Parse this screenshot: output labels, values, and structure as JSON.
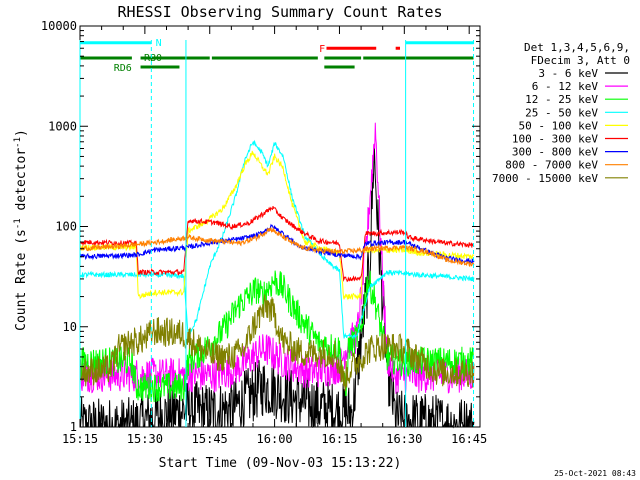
{
  "chart_data": {
    "type": "line",
    "title": "RHESSI Observing Summary Count Rates",
    "xlabel": "Start Time (09-Nov-03 15:13:22)",
    "ylabel": "Count Rate (s⁻¹ detector⁻¹)",
    "ylabel_main": "Count Rate (s",
    "ylabel_sup1": "-1",
    "ylabel_mid": " detector",
    "ylabel_sup2": "-1",
    "ylabel_end": ")",
    "yscale": "log",
    "xlim_minutes": [
      15.0,
      107.5
    ],
    "ylim": [
      1,
      10000
    ],
    "grid": false,
    "legend_position": "right",
    "timestamp": "25-Oct-2021 08:43",
    "x_ticks": [
      {
        "minute": 15,
        "label": "15:15"
      },
      {
        "minute": 30,
        "label": "15:30"
      },
      {
        "minute": 45,
        "label": "15:45"
      },
      {
        "minute": 60,
        "label": "16:00"
      },
      {
        "minute": 75,
        "label": "16:15"
      },
      {
        "minute": 90,
        "label": "16:30"
      },
      {
        "minute": 105,
        "label": "16:45"
      }
    ],
    "y_ticks": [
      {
        "value": 1,
        "label": "1"
      },
      {
        "value": 10,
        "label": "10"
      },
      {
        "value": 100,
        "label": "100"
      },
      {
        "value": 1000,
        "label": "1000"
      },
      {
        "value": 10000,
        "label": "10000"
      }
    ],
    "legend_header": [
      "Det 1,3,4,5,6,9,",
      "FDecim 3, Att 0"
    ],
    "series": [
      {
        "name": "3 - 6 keV",
        "color": "#000000",
        "noise": 0.6,
        "points": [
          [
            15,
            1
          ],
          [
            15.5,
            1
          ],
          [
            27,
            1
          ],
          [
            31,
            1.2
          ],
          [
            40,
            1.5
          ],
          [
            44,
            1.4
          ],
          [
            50,
            1.5
          ],
          [
            54,
            2
          ],
          [
            57,
            2.5
          ],
          [
            60,
            2.4
          ],
          [
            63,
            2
          ],
          [
            70,
            1.6
          ],
          [
            75,
            1.4
          ],
          [
            78,
            1.4
          ],
          [
            82,
            40
          ],
          [
            83,
            600
          ],
          [
            84,
            80
          ],
          [
            86,
            4
          ],
          [
            88,
            1.2
          ],
          [
            106,
            1
          ]
        ]
      },
      {
        "name": "6 - 12 keV",
        "color": "#ff00ff",
        "noise": 0.35,
        "points": [
          [
            15,
            3.3
          ],
          [
            27,
            3.3
          ],
          [
            28,
            3.3
          ],
          [
            31,
            3.3
          ],
          [
            40,
            3.3
          ],
          [
            47,
            3.3
          ],
          [
            52,
            4
          ],
          [
            56,
            5.5
          ],
          [
            58,
            6
          ],
          [
            62,
            4.5
          ],
          [
            68,
            3.5
          ],
          [
            75,
            4
          ],
          [
            77,
            7
          ],
          [
            79,
            8
          ],
          [
            81,
            50
          ],
          [
            82.5,
            350
          ],
          [
            83.3,
            1000
          ],
          [
            84.5,
            80
          ],
          [
            86,
            5
          ],
          [
            88,
            3.2
          ],
          [
            106,
            3.3
          ]
        ]
      },
      {
        "name": "12 - 25 keV",
        "color": "#00ff00",
        "noise": 0.3,
        "points": [
          [
            15,
            4.5
          ],
          [
            27,
            4.5
          ],
          [
            28,
            2.5
          ],
          [
            31,
            2.5
          ],
          [
            39,
            2.5
          ],
          [
            40,
            4.5
          ],
          [
            44,
            6
          ],
          [
            48,
            9
          ],
          [
            52,
            17
          ],
          [
            55,
            22
          ],
          [
            56,
            24
          ],
          [
            57,
            20
          ],
          [
            58,
            23
          ],
          [
            60,
            29
          ],
          [
            62,
            24
          ],
          [
            65,
            14
          ],
          [
            70,
            7
          ],
          [
            75,
            6
          ],
          [
            76.5,
            2
          ],
          [
            77,
            6
          ],
          [
            80,
            9
          ],
          [
            81.5,
            30
          ],
          [
            83,
            20
          ],
          [
            86,
            5
          ],
          [
            89,
            4.5
          ],
          [
            106,
            4.5
          ]
        ]
      },
      {
        "name": "25 - 50 keV",
        "color": "#00ffff",
        "noise": 0.05,
        "points": [
          [
            15,
            33
          ],
          [
            28,
            33
          ],
          [
            32,
            33
          ],
          [
            39,
            32
          ],
          [
            40,
            8
          ],
          [
            42,
            12
          ],
          [
            45,
            40
          ],
          [
            48,
            80
          ],
          [
            51,
            200
          ],
          [
            53,
            450
          ],
          [
            55,
            700
          ],
          [
            57,
            550
          ],
          [
            58.5,
            400
          ],
          [
            60,
            680
          ],
          [
            62,
            500
          ],
          [
            64,
            200
          ],
          [
            67,
            80
          ],
          [
            72,
            45
          ],
          [
            75,
            36
          ],
          [
            76,
            8
          ],
          [
            79,
            8
          ],
          [
            82,
            25
          ],
          [
            86,
            35
          ],
          [
            106,
            30
          ]
        ]
      },
      {
        "name": "50 - 100 keV",
        "color": "#ffff00",
        "noise": 0.06,
        "points": [
          [
            15,
            62
          ],
          [
            28,
            62
          ],
          [
            28.5,
            20
          ],
          [
            32,
            22
          ],
          [
            39,
            22
          ],
          [
            40,
            90
          ],
          [
            44,
            110
          ],
          [
            48,
            150
          ],
          [
            51,
            250
          ],
          [
            53,
            400
          ],
          [
            55,
            550
          ],
          [
            57,
            400
          ],
          [
            58.5,
            330
          ],
          [
            60,
            500
          ],
          [
            62,
            380
          ],
          [
            64,
            170
          ],
          [
            67,
            70
          ],
          [
            72,
            58
          ],
          [
            75,
            54
          ],
          [
            76,
            20
          ],
          [
            80,
            20
          ],
          [
            80.5,
            58
          ],
          [
            90,
            58
          ],
          [
            93,
            55
          ],
          [
            100,
            52
          ],
          [
            106,
            50
          ]
        ]
      },
      {
        "name": "100 - 300 keV",
        "color": "#ff0000",
        "noise": 0.05,
        "points": [
          [
            15,
            70
          ],
          [
            28,
            68
          ],
          [
            28.5,
            35
          ],
          [
            32,
            35
          ],
          [
            39,
            35
          ],
          [
            40,
            115
          ],
          [
            46,
            110
          ],
          [
            50,
            100
          ],
          [
            54,
            108
          ],
          [
            58,
            140
          ],
          [
            59.5,
            155
          ],
          [
            62,
            120
          ],
          [
            66,
            90
          ],
          [
            70,
            72
          ],
          [
            75,
            68
          ],
          [
            76,
            30
          ],
          [
            80,
            30
          ],
          [
            81,
            85
          ],
          [
            90,
            88
          ],
          [
            91,
            78
          ],
          [
            96,
            72
          ],
          [
            100,
            68
          ],
          [
            106,
            65
          ]
        ]
      },
      {
        "name": "300 - 800 keV",
        "color": "#0000ff",
        "noise": 0.05,
        "points": [
          [
            15,
            50
          ],
          [
            28,
            52
          ],
          [
            32,
            58
          ],
          [
            40,
            62
          ],
          [
            46,
            70
          ],
          [
            52,
            75
          ],
          [
            56,
            82
          ],
          [
            59.5,
            100
          ],
          [
            62,
            85
          ],
          [
            66,
            62
          ],
          [
            72,
            55
          ],
          [
            75,
            52
          ],
          [
            80,
            50
          ],
          [
            81,
            68
          ],
          [
            90,
            70
          ],
          [
            96,
            55
          ],
          [
            100,
            48
          ],
          [
            106,
            45
          ]
        ]
      },
      {
        "name": "800 - 7000 keV",
        "color": "#ff8000",
        "noise": 0.05,
        "points": [
          [
            15,
            60
          ],
          [
            25,
            64
          ],
          [
            33,
            70
          ],
          [
            40,
            78
          ],
          [
            46,
            72
          ],
          [
            52,
            68
          ],
          [
            56,
            78
          ],
          [
            59,
            95
          ],
          [
            62,
            78
          ],
          [
            66,
            62
          ],
          [
            70,
            58
          ],
          [
            75,
            56
          ],
          [
            80,
            58
          ],
          [
            82,
            60
          ],
          [
            90,
            62
          ],
          [
            96,
            55
          ],
          [
            100,
            46
          ],
          [
            106,
            42
          ]
        ]
      },
      {
        "name": "7000 - 15000 keV",
        "color": "#808000",
        "noise": 0.3,
        "points": [
          [
            15,
            3.5
          ],
          [
            22,
            3.8
          ],
          [
            24,
            6
          ],
          [
            27,
            7
          ],
          [
            30,
            7.5
          ],
          [
            32,
            9
          ],
          [
            39,
            8.5
          ],
          [
            42,
            6.5
          ],
          [
            46,
            5
          ],
          [
            50,
            5
          ],
          [
            53,
            6
          ],
          [
            55,
            10
          ],
          [
            57,
            14
          ],
          [
            58.5,
            16
          ],
          [
            60,
            13
          ],
          [
            62,
            7
          ],
          [
            66,
            5.5
          ],
          [
            70,
            5.5
          ],
          [
            74,
            5.5
          ],
          [
            76,
            3
          ],
          [
            78,
            4
          ],
          [
            82,
            6
          ],
          [
            85,
            6.5
          ],
          [
            90,
            6
          ],
          [
            94,
            4.5
          ],
          [
            98,
            3.5
          ],
          [
            106,
            3.5
          ]
        ]
      }
    ],
    "state_bars": [
      {
        "label": "N",
        "color": "#00ffff",
        "y": 6800,
        "segments": [
          [
            15,
            31.5
          ],
          [
            90.3,
            106
          ]
        ]
      },
      {
        "label": "F",
        "color": "#ff0000",
        "y": 6000,
        "segments": [
          [
            72,
            83.5
          ],
          [
            88,
            89
          ]
        ]
      },
      {
        "label": "RB0",
        "color": "#008000",
        "y": 4800,
        "segments": [
          [
            15,
            27
          ],
          [
            29,
            45
          ],
          [
            45.5,
            70
          ],
          [
            71.5,
            80
          ],
          [
            80.5,
            106
          ]
        ]
      },
      {
        "label": "RD6",
        "color": "#008000",
        "y": 3900,
        "segments": [
          [
            29,
            38
          ],
          [
            71.5,
            78.5
          ]
        ]
      }
    ],
    "vlines": [
      {
        "minute": 15.0,
        "style": "solid"
      },
      {
        "minute": 31.5,
        "style": "dashed"
      },
      {
        "minute": 39.5,
        "style": "solid"
      },
      {
        "minute": 90.3,
        "style": "solid"
      },
      {
        "minute": 106.0,
        "style": "dashed"
      }
    ]
  }
}
